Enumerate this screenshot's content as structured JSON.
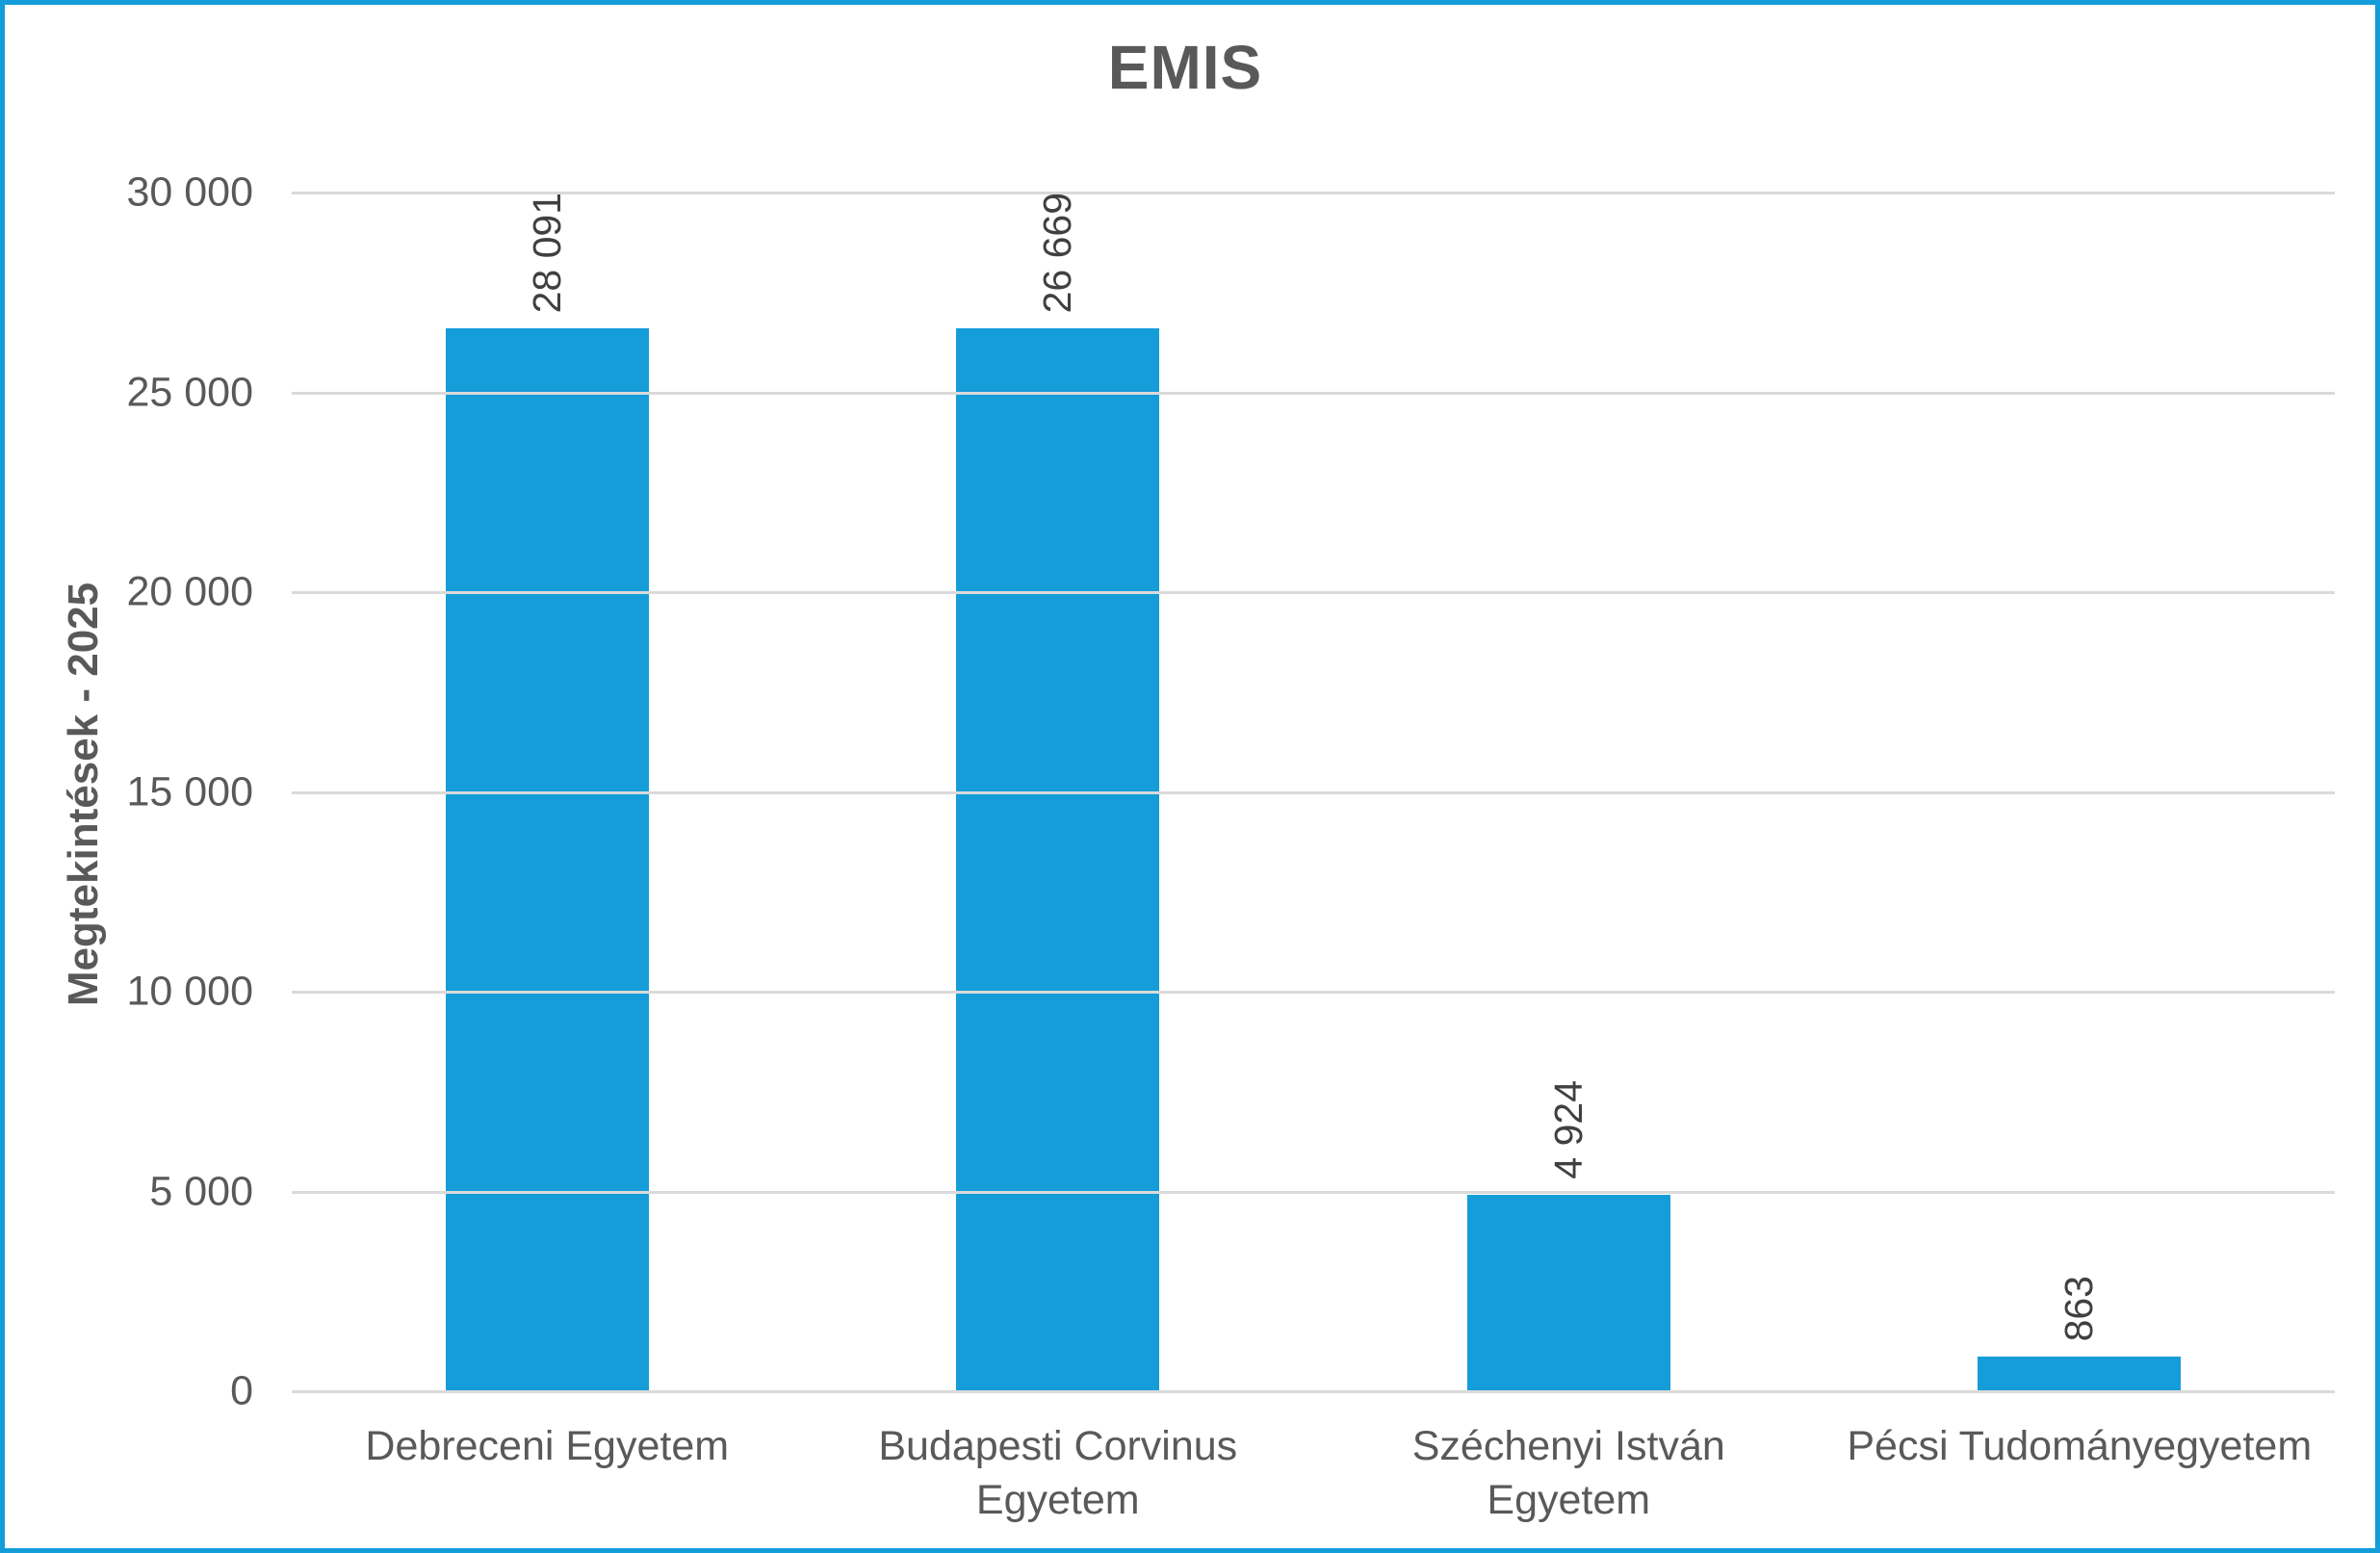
{
  "frame": {
    "border_color": "#149dd9",
    "background_color": "#ffffff"
  },
  "chart_data": {
    "type": "bar",
    "title": "EMIS",
    "xlabel": "",
    "ylabel": "Megtekintések - 2025",
    "categories": [
      "Debreceni Egyetem",
      "Budapesti Corvinus Egyetem",
      "Széchenyi István Egyetem",
      "Pécsi Tudományegyetem"
    ],
    "values": [
      28091,
      26669,
      4924,
      863
    ],
    "value_labels": [
      "28 091",
      "26 669",
      "4 924",
      "863"
    ],
    "ylim": [
      0,
      30000
    ],
    "yticks": [
      {
        "value": 0,
        "label": "0"
      },
      {
        "value": 5000,
        "label": "5 000"
      },
      {
        "value": 10000,
        "label": "10 000"
      },
      {
        "value": 15000,
        "label": "15 000"
      },
      {
        "value": 20000,
        "label": "20 000"
      },
      {
        "value": 25000,
        "label": "25 000"
      },
      {
        "value": 30000,
        "label": "30 000"
      }
    ],
    "grid": true,
    "legend": false,
    "bar_color": "#149dd9",
    "gridline_color": "#dadada",
    "axis_text_color": "#595959",
    "data_label_color": "#404040",
    "title_color": "#595959",
    "data_label_orientation": "rotated-90",
    "legend_position": "none"
  }
}
